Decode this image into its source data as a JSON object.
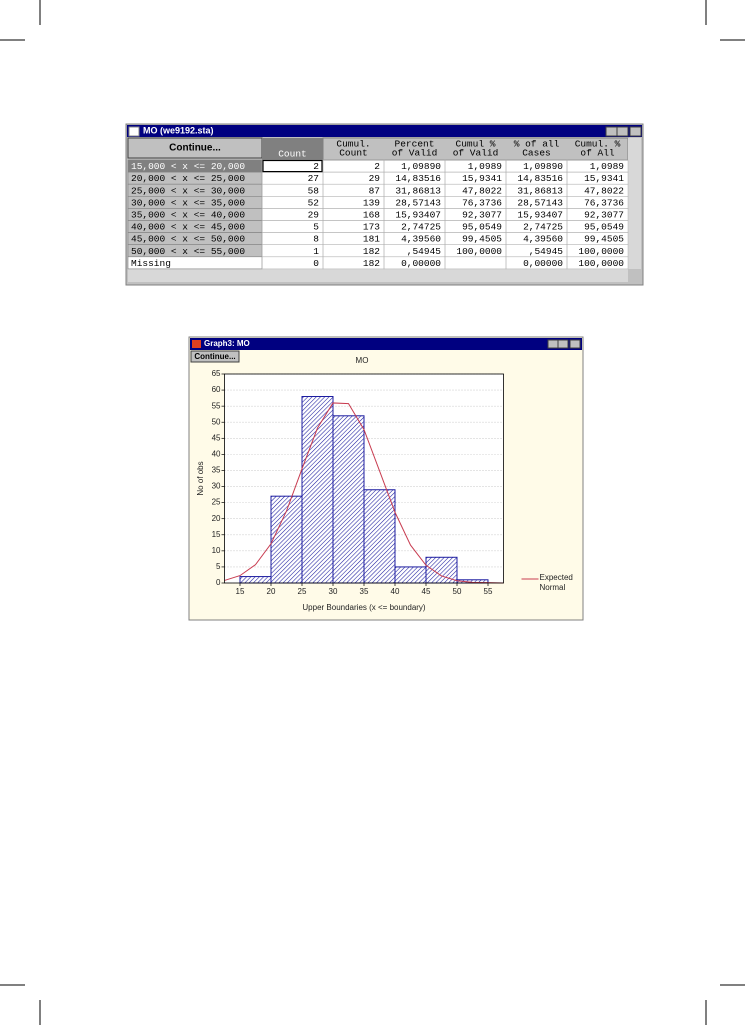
{
  "table_window": {
    "title": "MO (we9192.sta)",
    "button": "Continue...",
    "columns": [
      [
        "Count"
      ],
      [
        "Cumul.",
        "Count"
      ],
      [
        "Percent",
        "of Valid"
      ],
      [
        "Cumul %",
        "of Valid"
      ],
      [
        "% of all",
        "Cases"
      ],
      [
        "Cumul. %",
        "of All"
      ]
    ],
    "rows": [
      {
        "label": "15,000 < x <= 20,000",
        "cells": [
          "2",
          "2",
          "1,09890",
          "1,0989",
          "1,09890",
          "1,0989"
        ]
      },
      {
        "label": "20,000 < x <= 25,000",
        "cells": [
          "27",
          "29",
          "14,83516",
          "15,9341",
          "14,83516",
          "15,9341"
        ]
      },
      {
        "label": "25,000 < x <= 30,000",
        "cells": [
          "58",
          "87",
          "31,86813",
          "47,8022",
          "31,86813",
          "47,8022"
        ]
      },
      {
        "label": "30,000 < x <= 35,000",
        "cells": [
          "52",
          "139",
          "28,57143",
          "76,3736",
          "28,57143",
          "76,3736"
        ]
      },
      {
        "label": "35,000 < x <= 40,000",
        "cells": [
          "29",
          "168",
          "15,93407",
          "92,3077",
          "15,93407",
          "92,3077"
        ]
      },
      {
        "label": "40,000 < x <= 45,000",
        "cells": [
          "5",
          "173",
          "2,74725",
          "95,0549",
          "2,74725",
          "95,0549"
        ]
      },
      {
        "label": "45,000 < x <= 50,000",
        "cells": [
          "8",
          "181",
          "4,39560",
          "99,4505",
          "4,39560",
          "99,4505"
        ]
      },
      {
        "label": "50,000 < x <= 55,000",
        "cells": [
          "1",
          "182",
          ",54945",
          "100,0000",
          ",54945",
          "100,0000"
        ]
      },
      {
        "label": "Missing",
        "cells": [
          "0",
          "182",
          "0,00000",
          null,
          "0,00000",
          "100,0000"
        ]
      }
    ]
  },
  "graph_window": {
    "title": "Graph3: MO",
    "button": "Continue..."
  },
  "chart_data": {
    "type": "histogram",
    "title": "MO",
    "xlabel": "Upper Boundaries (x <= boundary)",
    "ylabel": "No of obs",
    "bins": [
      15,
      20,
      25,
      30,
      35,
      40,
      45,
      50,
      55
    ],
    "values": [
      2,
      27,
      58,
      52,
      29,
      5,
      8,
      1
    ],
    "color": "#1c1ca0",
    "xlim": [
      12.5,
      57.5
    ],
    "xticks": [
      15,
      20,
      25,
      30,
      35,
      40,
      45,
      50,
      55
    ],
    "ylim": [
      0,
      65
    ],
    "yticks": [
      0,
      5,
      10,
      15,
      20,
      25,
      30,
      35,
      40,
      45,
      50,
      55,
      60,
      65
    ],
    "grid": true,
    "legend": "right",
    "curve": {
      "name": "Expected Normal",
      "color": "#c83c50",
      "x": [
        12.5,
        15,
        17.5,
        20,
        22.5,
        25,
        27.5,
        30,
        32.5,
        35,
        37.5,
        40,
        42.5,
        45,
        47.5,
        50,
        52.5,
        55,
        57.5
      ],
      "values": [
        0.8,
        2.3,
        5.7,
        12.2,
        22.4,
        35.5,
        48.2,
        56.0,
        55.8,
        47.7,
        34.9,
        22.0,
        11.8,
        5.5,
        2.2,
        0.7,
        0.2,
        0.1,
        0.0
      ]
    }
  }
}
